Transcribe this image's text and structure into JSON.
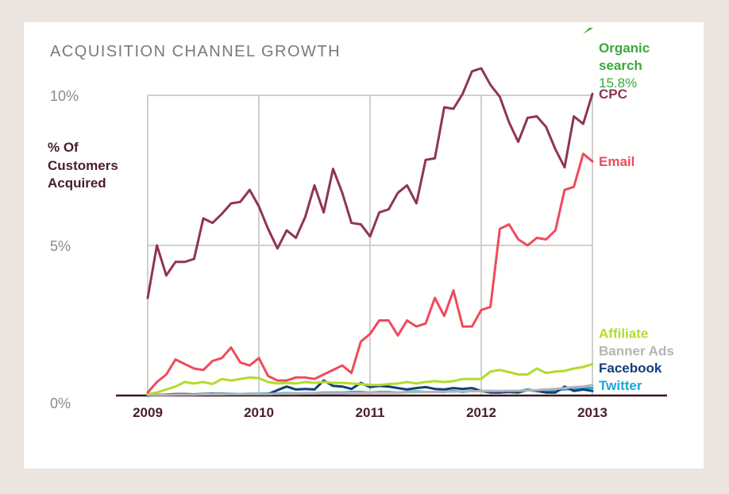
{
  "chart_data": {
    "type": "line",
    "title": "ACQUISITION CHANNEL GROWTH",
    "ylabel": [
      "% Of",
      "Customers",
      "Acquired"
    ],
    "ylim": [
      0,
      10
    ],
    "yticks": [
      {
        "value": 0,
        "label": "0%"
      },
      {
        "value": 5,
        "label": "5%"
      },
      {
        "value": 10,
        "label": "10%"
      }
    ],
    "xlim": [
      2009,
      2013
    ],
    "xticks": [
      {
        "value": 2009,
        "label": "2009"
      },
      {
        "value": 2010,
        "label": "2010"
      },
      {
        "value": 2011,
        "label": "2011"
      },
      {
        "value": 2012,
        "label": "2012"
      },
      {
        "value": 2013,
        "label": "2013"
      }
    ],
    "grid": true,
    "x": [
      2009.0,
      2009.083,
      2009.167,
      2009.25,
      2009.333,
      2009.417,
      2009.5,
      2009.583,
      2009.667,
      2009.75,
      2009.833,
      2009.917,
      2010.0,
      2010.083,
      2010.167,
      2010.25,
      2010.333,
      2010.417,
      2010.5,
      2010.583,
      2010.667,
      2010.75,
      2010.833,
      2010.917,
      2011.0,
      2011.083,
      2011.167,
      2011.25,
      2011.333,
      2011.417,
      2011.5,
      2011.583,
      2011.667,
      2011.75,
      2011.833,
      2011.917,
      2012.0,
      2012.083,
      2012.167,
      2012.25,
      2012.333,
      2012.417,
      2012.5,
      2012.583,
      2012.667,
      2012.75,
      2012.833,
      2012.917,
      2013.0
    ],
    "series": [
      {
        "name": "CPC",
        "color": "#8f3458",
        "values": [
          3.25,
          5.0,
          4.0,
          4.45,
          4.45,
          4.55,
          5.9,
          5.75,
          6.05,
          6.4,
          6.45,
          6.85,
          6.3,
          5.55,
          4.9,
          5.5,
          5.25,
          5.95,
          7.0,
          6.1,
          7.55,
          6.75,
          5.75,
          5.7,
          5.3,
          6.1,
          6.2,
          6.75,
          7.0,
          6.4,
          7.85,
          7.9,
          9.6,
          9.55,
          10.05,
          10.8,
          10.9,
          10.35,
          9.95,
          9.1,
          8.45,
          9.25,
          9.3,
          8.95,
          8.2,
          7.6,
          9.3,
          9.05,
          10.05
        ]
      },
      {
        "name": "Email",
        "color": "#ef4a5c",
        "values": [
          0.1,
          0.45,
          0.7,
          1.2,
          1.05,
          0.9,
          0.85,
          1.15,
          1.25,
          1.6,
          1.1,
          1.0,
          1.25,
          0.65,
          0.5,
          0.5,
          0.6,
          0.6,
          0.55,
          0.7,
          0.85,
          1.0,
          0.75,
          1.8,
          2.05,
          2.5,
          2.5,
          2.0,
          2.5,
          2.3,
          2.4,
          3.25,
          2.65,
          3.5,
          2.3,
          2.3,
          2.85,
          2.95,
          5.55,
          5.7,
          5.2,
          5.0,
          5.25,
          5.2,
          5.5,
          6.85,
          6.95,
          8.05,
          7.8
        ]
      },
      {
        "name": "Affiliate",
        "color": "#b2dc2c",
        "values": [
          0.05,
          0.1,
          0.2,
          0.3,
          0.45,
          0.4,
          0.45,
          0.38,
          0.55,
          0.5,
          0.55,
          0.6,
          0.58,
          0.45,
          0.4,
          0.42,
          0.4,
          0.45,
          0.42,
          0.45,
          0.42,
          0.42,
          0.4,
          0.38,
          0.35,
          0.35,
          0.38,
          0.4,
          0.45,
          0.4,
          0.45,
          0.48,
          0.45,
          0.48,
          0.55,
          0.55,
          0.55,
          0.8,
          0.85,
          0.78,
          0.7,
          0.7,
          0.9,
          0.75,
          0.8,
          0.82,
          0.9,
          0.95,
          1.05
        ]
      },
      {
        "name": "Banner Ads",
        "color": "#b4b4b4",
        "values": [
          0.02,
          0.02,
          0.02,
          0.03,
          0.03,
          0.03,
          0.04,
          0.04,
          0.04,
          0.05,
          0.05,
          0.05,
          0.05,
          0.05,
          0.06,
          0.06,
          0.06,
          0.07,
          0.07,
          0.08,
          0.08,
          0.08,
          0.09,
          0.09,
          0.1,
          0.1,
          0.1,
          0.1,
          0.11,
          0.12,
          0.12,
          0.12,
          0.13,
          0.13,
          0.14,
          0.14,
          0.15,
          0.15,
          0.15,
          0.16,
          0.16,
          0.17,
          0.18,
          0.2,
          0.22,
          0.25,
          0.28,
          0.3,
          0.35
        ]
      },
      {
        "name": "Facebook",
        "color": "#123f7a",
        "values": [
          0.0,
          0.02,
          0.03,
          0.05,
          0.05,
          0.04,
          0.05,
          0.06,
          0.05,
          0.04,
          0.04,
          0.05,
          0.04,
          0.05,
          0.18,
          0.3,
          0.2,
          0.22,
          0.2,
          0.5,
          0.32,
          0.3,
          0.22,
          0.42,
          0.28,
          0.32,
          0.3,
          0.25,
          0.2,
          0.25,
          0.28,
          0.22,
          0.2,
          0.25,
          0.22,
          0.25,
          0.15,
          0.1,
          0.1,
          0.12,
          0.1,
          0.18,
          0.15,
          0.1,
          0.1,
          0.3,
          0.15,
          0.2,
          0.15
        ]
      },
      {
        "name": "Twitter",
        "color": "#1ba7de",
        "values": [
          0.0,
          0.02,
          0.03,
          0.03,
          0.04,
          0.04,
          0.05,
          0.05,
          0.06,
          0.06,
          0.05,
          0.06,
          0.06,
          0.07,
          0.07,
          0.08,
          0.07,
          0.08,
          0.08,
          0.1,
          0.1,
          0.1,
          0.12,
          0.12,
          0.1,
          0.12,
          0.12,
          0.1,
          0.12,
          0.14,
          0.12,
          0.12,
          0.12,
          0.15,
          0.12,
          0.15,
          0.15,
          0.15,
          0.12,
          0.15,
          0.15,
          0.2,
          0.15,
          0.12,
          0.18,
          0.2,
          0.22,
          0.25,
          0.25
        ]
      }
    ],
    "organic": {
      "label_line1": "Organic",
      "label_line2": "search",
      "value_label": "15.8%",
      "color": "#3aa83e"
    },
    "end_labels": [
      {
        "text": "CPC",
        "color": "#8f3458",
        "value": 10.05
      },
      {
        "text": "Email",
        "color": "#ef4a5c",
        "value": 7.8
      },
      {
        "text": "Affiliate",
        "color": "#b2dc2c",
        "value": 2.08
      },
      {
        "text": "Banner Ads",
        "color": "#b4b4b4",
        "value": 1.5
      },
      {
        "text": "Facebook",
        "color": "#123f7a",
        "value": 0.93
      },
      {
        "text": "Twitter",
        "color": "#1ba7de",
        "value": 0.35
      }
    ]
  }
}
